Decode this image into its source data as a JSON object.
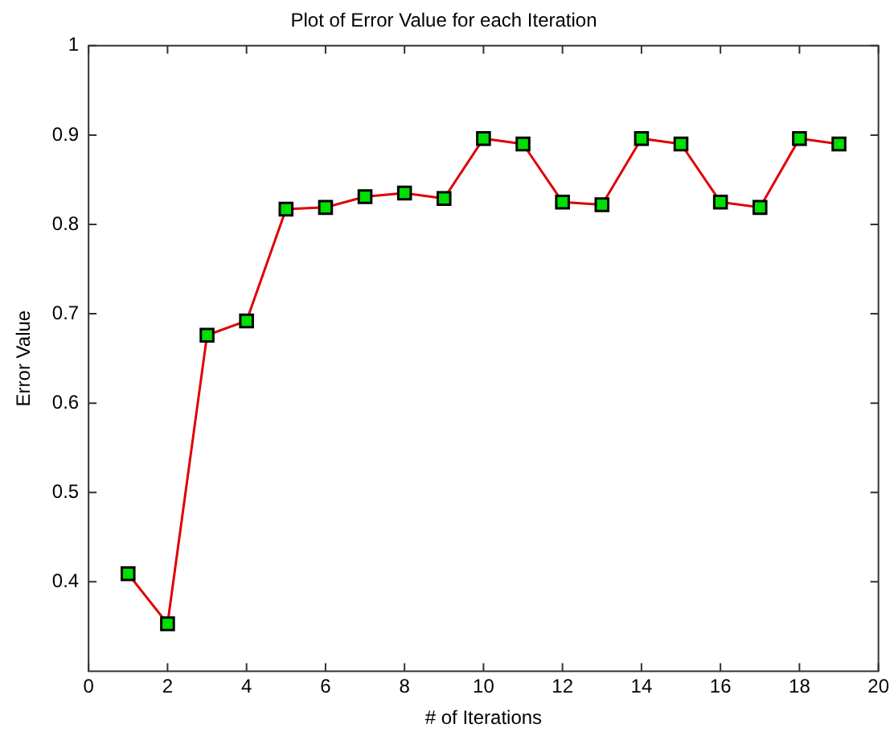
{
  "chart_data": {
    "type": "line",
    "title": "Plot of Error Value for each Iteration",
    "xlabel": "# of Iterations",
    "ylabel": "Error Value",
    "x": [
      1,
      2,
      3,
      4,
      5,
      6,
      7,
      8,
      9,
      10,
      11,
      12,
      13,
      14,
      15,
      16,
      17,
      18,
      19
    ],
    "series": [
      {
        "color": "#e00000",
        "values": [
          0.409,
          0.353,
          0.676,
          0.692,
          0.817,
          0.819,
          0.831,
          0.835,
          0.829,
          0.896,
          0.89,
          0.825,
          0.822,
          0.896,
          0.89,
          0.825,
          0.819,
          0.896,
          0.89
        ]
      }
    ],
    "xlim": [
      0,
      20
    ],
    "xticks": [
      0,
      2,
      4,
      6,
      8,
      10,
      12,
      14,
      16,
      18,
      20
    ],
    "ylim": [
      0.3,
      1
    ],
    "yticks": [
      0.4,
      0.5,
      0.6,
      0.7,
      0.8,
      0.9,
      1
    ],
    "grid": false,
    "legend": false,
    "marker": "square",
    "line_style": "solid"
  }
}
